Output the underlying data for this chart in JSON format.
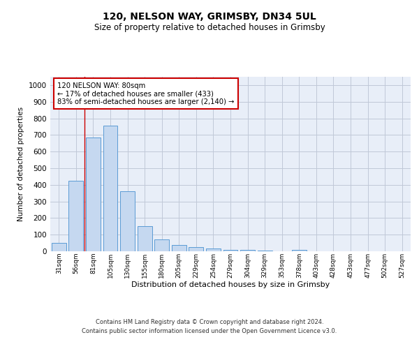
{
  "title_line1": "120, NELSON WAY, GRIMSBY, DN34 5UL",
  "title_line2": "Size of property relative to detached houses in Grimsby",
  "xlabel": "Distribution of detached houses by size in Grimsby",
  "ylabel": "Number of detached properties",
  "categories": [
    "31sqm",
    "56sqm",
    "81sqm",
    "105sqm",
    "130sqm",
    "155sqm",
    "180sqm",
    "205sqm",
    "229sqm",
    "254sqm",
    "279sqm",
    "304sqm",
    "329sqm",
    "353sqm",
    "378sqm",
    "403sqm",
    "428sqm",
    "453sqm",
    "477sqm",
    "502sqm",
    "527sqm"
  ],
  "values": [
    50,
    425,
    685,
    755,
    360,
    150,
    70,
    38,
    25,
    15,
    10,
    7,
    5,
    0,
    8,
    0,
    0,
    0,
    0,
    0,
    0
  ],
  "bar_color": "#c5d8f0",
  "bar_edge_color": "#5b9bd5",
  "bar_width": 0.85,
  "ylim": [
    0,
    1050
  ],
  "yticks": [
    0,
    100,
    200,
    300,
    400,
    500,
    600,
    700,
    800,
    900,
    1000
  ],
  "grid_color": "#c0c8d8",
  "bg_color": "#e8eef8",
  "annotation_text": "120 NELSON WAY: 80sqm\n← 17% of detached houses are smaller (433)\n83% of semi-detached houses are larger (2,140) →",
  "annotation_box_color": "#ffffff",
  "annotation_box_edge": "#cc0000",
  "red_line_x": 1.5,
  "footer_line1": "Contains HM Land Registry data © Crown copyright and database right 2024.",
  "footer_line2": "Contains public sector information licensed under the Open Government Licence v3.0."
}
